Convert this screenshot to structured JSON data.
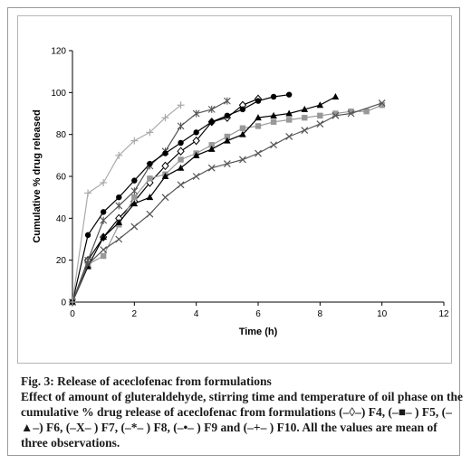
{
  "caption": {
    "title": "Fig. 3: Release of aceclofenac from formulations",
    "body": "Effect of amount of gluteraldehyde, stirring time and temperature of oil phase on the cumulative % drug release of aceclofenac from formulations (–◊–) F4, (–■– ) F5, (–▲–) F6, (–X– ) F7, (–*– ) F8, (–•– ) F9 and (–+– ) F10. All the values are mean of three observations."
  },
  "chart_data": {
    "type": "line",
    "xlabel": "Time (h)",
    "ylabel": "Cumulative % drug released",
    "xlim": [
      0,
      12
    ],
    "ylim": [
      0,
      120
    ],
    "xticks": [
      0,
      2,
      4,
      6,
      8,
      10,
      12
    ],
    "yticks": [
      0,
      20,
      40,
      60,
      80,
      100,
      120
    ],
    "grid": false,
    "series": [
      {
        "name": "F4",
        "marker": "diamond-open",
        "color": "#000000",
        "x": [
          0,
          0.5,
          1,
          1.5,
          2,
          2.5,
          3,
          3.5,
          4,
          4.5,
          5,
          5.5,
          6
        ],
        "y": [
          0,
          20,
          31,
          40,
          48,
          57,
          65,
          72,
          77,
          86,
          88,
          94,
          97
        ]
      },
      {
        "name": "F5",
        "marker": "square",
        "color": "#999999",
        "x": [
          0,
          0.5,
          1,
          1.5,
          2,
          2.5,
          3,
          3.5,
          4,
          4.5,
          5,
          5.5,
          6,
          6.5,
          7,
          7.5,
          8,
          8.5,
          9,
          9.5,
          10
        ],
        "y": [
          0,
          18,
          22,
          37,
          50,
          59,
          61,
          68,
          71,
          75,
          79,
          83,
          84,
          86,
          87,
          88,
          89,
          90,
          91,
          91,
          94
        ]
      },
      {
        "name": "F6",
        "marker": "triangle",
        "color": "#000000",
        "x": [
          0,
          0.5,
          1,
          1.5,
          2,
          2.5,
          3,
          3.5,
          4,
          4.5,
          5,
          5.5,
          6,
          6.5,
          7,
          7.5,
          8,
          8.5
        ],
        "y": [
          0,
          17,
          31,
          38,
          47,
          50,
          60,
          64,
          70,
          73,
          77,
          80,
          88,
          89,
          90,
          92,
          94,
          98
        ]
      },
      {
        "name": "F7",
        "marker": "x",
        "color": "#555555",
        "x": [
          0,
          0.5,
          1,
          1.5,
          2,
          2.5,
          3,
          3.5,
          4,
          4.5,
          5,
          5.5,
          6,
          6.5,
          7,
          7.5,
          8,
          8.5,
          9,
          10
        ],
        "y": [
          0,
          18,
          25,
          30,
          36,
          42,
          50,
          56,
          60,
          64,
          66,
          68,
          71,
          75,
          79,
          82,
          85,
          89,
          90,
          95
        ]
      },
      {
        "name": "F8",
        "marker": "asterisk",
        "color": "#555555",
        "x": [
          0,
          0.5,
          1,
          1.5,
          2,
          2.5,
          3,
          3.5,
          4,
          4.5,
          5
        ],
        "y": [
          0,
          20,
          39,
          46,
          53,
          65,
          72,
          84,
          90,
          92,
          96
        ]
      },
      {
        "name": "F9",
        "marker": "circle",
        "color": "#000000",
        "x": [
          0,
          0.5,
          1,
          1.5,
          2,
          2.5,
          3,
          3.5,
          4,
          4.5,
          5,
          5.5,
          6,
          6.5,
          7
        ],
        "y": [
          0,
          32,
          43,
          50,
          58,
          66,
          71,
          76,
          81,
          86,
          89,
          92,
          96,
          98,
          99
        ]
      },
      {
        "name": "F10",
        "marker": "plus",
        "color": "#aaaaaa",
        "x": [
          0,
          0.5,
          1,
          1.5,
          2,
          2.5,
          3,
          3.5
        ],
        "y": [
          0,
          52,
          57,
          70,
          77,
          81,
          88,
          94
        ]
      }
    ]
  }
}
